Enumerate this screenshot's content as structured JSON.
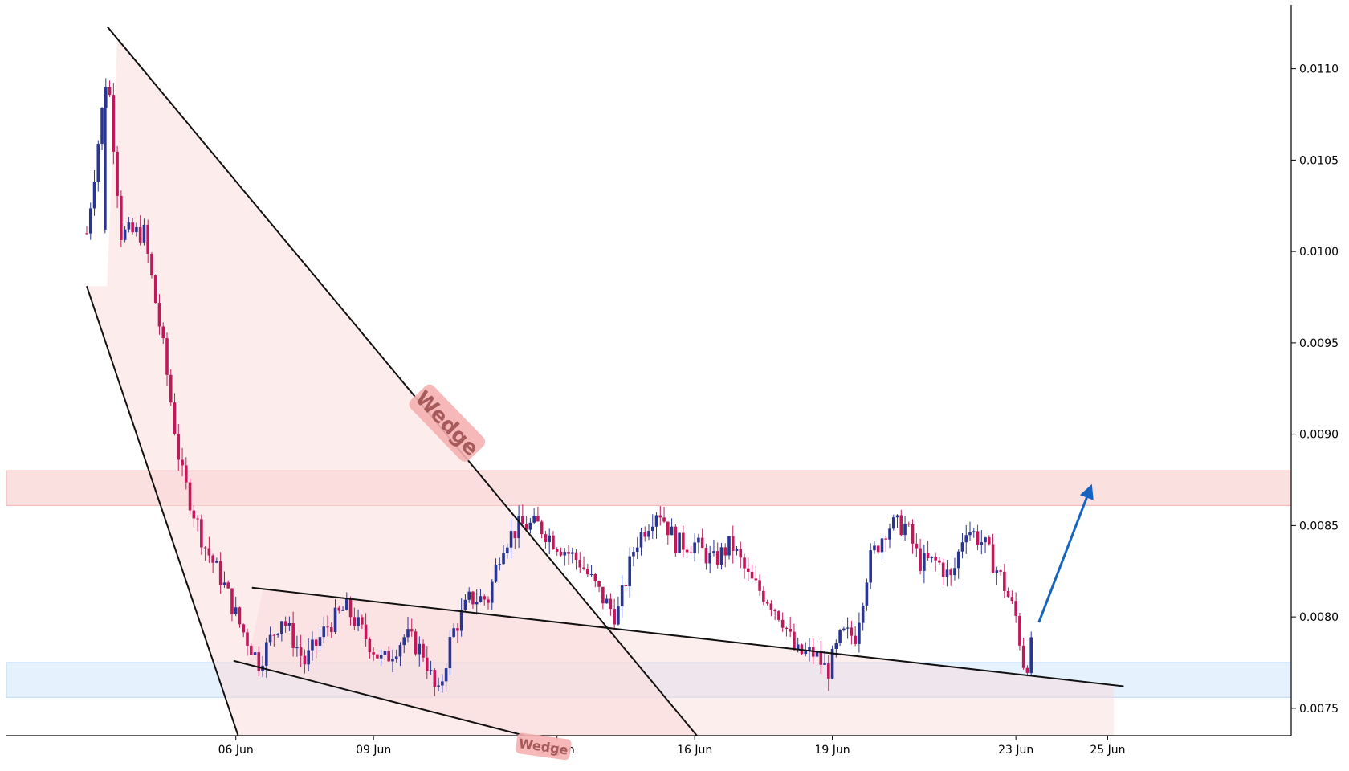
{
  "chart_data": {
    "type": "candlestick",
    "title": "",
    "xlabel": "",
    "ylabel": "",
    "ylim": [
      0.00735,
      0.01135
    ],
    "x_range_days": [
      0,
      28
    ],
    "y_ticks": [
      "0.0075",
      "0.0080",
      "0.0085",
      "0.0090",
      "0.0095",
      "0.0100",
      "0.0105",
      "0.0110"
    ],
    "x_ticks": [
      {
        "label": "06 Jun",
        "day": 5
      },
      {
        "label": "09 Jun",
        "day": 8
      },
      {
        "label": "13 Jun",
        "day": 12
      },
      {
        "label": "16 Jun",
        "day": 15
      },
      {
        "label": "19 Jun",
        "day": 18
      },
      {
        "label": "23 Jun",
        "day": 22
      },
      {
        "label": "25 Jun",
        "day": 24
      }
    ],
    "colors": {
      "up": "#283593",
      "down": "#c2185b",
      "arrow": "#1565c0",
      "resistance_zone": "#f7c6c6",
      "support_zone": "#cfe6fb",
      "wedge_fill": "#fbd9d9"
    },
    "price_path": [
      [
        1.75,
        0.0101
      ],
      [
        2.2,
        0.011
      ],
      [
        2.5,
        0.0101
      ],
      [
        3.0,
        0.0101
      ],
      [
        3.4,
        0.0095
      ],
      [
        3.8,
        0.0088
      ],
      [
        4.3,
        0.0084
      ],
      [
        4.7,
        0.0082
      ],
      [
        5.1,
        0.00795
      ],
      [
        5.5,
        0.00775
      ],
      [
        6.0,
        0.008
      ],
      [
        6.5,
        0.00775
      ],
      [
        7.0,
        0.00795
      ],
      [
        7.4,
        0.00805
      ],
      [
        7.8,
        0.0079
      ],
      [
        8.2,
        0.00775
      ],
      [
        8.7,
        0.0079
      ],
      [
        9.1,
        0.0078
      ],
      [
        9.4,
        0.00755
      ],
      [
        9.7,
        0.0079
      ],
      [
        10.1,
        0.0081
      ],
      [
        10.5,
        0.0081
      ],
      [
        10.8,
        0.0084
      ],
      [
        11.2,
        0.0085
      ],
      [
        11.6,
        0.0085
      ],
      [
        12.0,
        0.0084
      ],
      [
        12.5,
        0.0083
      ],
      [
        13.0,
        0.0081
      ],
      [
        13.3,
        0.008
      ],
      [
        13.7,
        0.0084
      ],
      [
        14.2,
        0.0086
      ],
      [
        14.6,
        0.0084
      ],
      [
        15.0,
        0.0084
      ],
      [
        15.4,
        0.0083
      ],
      [
        15.8,
        0.0084
      ],
      [
        16.2,
        0.0082
      ],
      [
        16.6,
        0.0081
      ],
      [
        16.9,
        0.008
      ],
      [
        17.2,
        0.0078
      ],
      [
        17.6,
        0.0078
      ],
      [
        17.9,
        0.0077
      ],
      [
        18.2,
        0.0079
      ],
      [
        18.5,
        0.0079
      ],
      [
        18.8,
        0.0083
      ],
      [
        19.2,
        0.0085
      ],
      [
        19.6,
        0.0085
      ],
      [
        19.9,
        0.0083
      ],
      [
        20.3,
        0.0083
      ],
      [
        20.6,
        0.0082
      ],
      [
        20.9,
        0.0085
      ],
      [
        21.3,
        0.0084
      ],
      [
        21.7,
        0.0082
      ],
      [
        22.0,
        0.008
      ],
      [
        22.2,
        0.0077
      ],
      [
        22.4,
        0.0079
      ]
    ],
    "zones": [
      {
        "kind": "resistance",
        "y_low": 0.00861,
        "y_high": 0.0088
      },
      {
        "kind": "support",
        "y_low": 0.00756,
        "y_high": 0.00775
      }
    ],
    "wedges": [
      {
        "label": "Wedge",
        "upper": [
          [
            2.2,
            0.01123
          ],
          [
            15.05,
            0.00735
          ]
        ],
        "lower": [
          [
            1.75,
            0.00981
          ],
          [
            5.05,
            0.00735
          ]
        ],
        "fill_to_day": 15.05
      },
      {
        "label": "Wedge",
        "upper": [
          [
            5.35,
            0.00816
          ],
          [
            24.35,
            0.00762
          ]
        ],
        "lower": [
          [
            4.95,
            0.00776
          ],
          [
            11.3,
            0.00735
          ]
        ],
        "fill_to_day": 24.13
      }
    ],
    "arrow": {
      "from": [
        22.5,
        0.00797
      ],
      "to": [
        23.6,
        0.00869
      ]
    }
  }
}
